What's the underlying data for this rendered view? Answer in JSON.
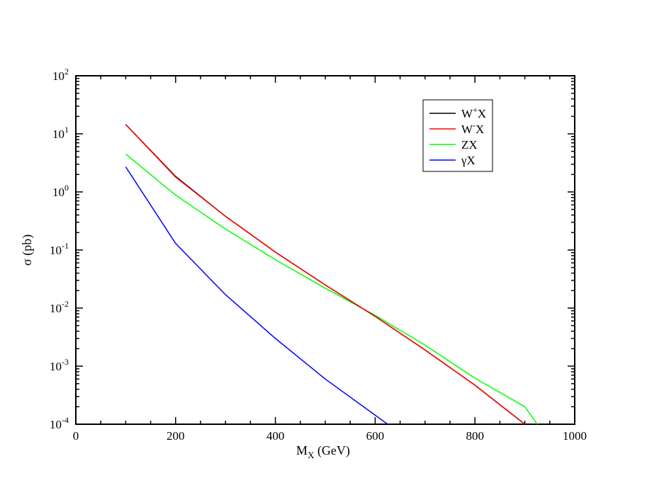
{
  "chart_data": {
    "type": "line",
    "xlabel_main": "M",
    "xlabel_sub": "X",
    "xlabel_rest": " (GeV)",
    "ylabel": "σ (pb)",
    "xlim": [
      0,
      1000
    ],
    "ylim": [
      0.0001,
      100
    ],
    "yscale": "log",
    "grid": false,
    "legend_position": "top-right",
    "x_ticks": [
      "0",
      "200",
      "400",
      "600",
      "800",
      "1000"
    ],
    "y_ticks": [
      {
        "base": "10",
        "exp": "2"
      },
      {
        "base": "10",
        "exp": "1"
      },
      {
        "base": "10",
        "exp": "0"
      },
      {
        "base": "10",
        "exp": "-1"
      },
      {
        "base": "10",
        "exp": "-2"
      },
      {
        "base": "10",
        "exp": "-3"
      },
      {
        "base": "10",
        "exp": "-4"
      }
    ],
    "series": [
      {
        "name_base": "W",
        "name_sup": "+",
        "name_rest": "X",
        "color": "#000000",
        "x": [
          100,
          200,
          300,
          400,
          500,
          600,
          700,
          800,
          900
        ],
        "y": [
          14.5,
          1.85,
          0.38,
          0.092,
          0.025,
          0.0072,
          0.0019,
          0.00047,
          0.0001
        ]
      },
      {
        "name_base": "W",
        "name_sup": "-",
        "name_rest": "X",
        "color": "#ff0000",
        "x": [
          100,
          200,
          300,
          400,
          500,
          600,
          700,
          800,
          900
        ],
        "y": [
          14.5,
          1.8,
          0.38,
          0.092,
          0.025,
          0.0072,
          0.0019,
          0.00047,
          0.0001
        ]
      },
      {
        "name_base": "ZX",
        "name_sup": "",
        "name_rest": "",
        "color": "#00ff00",
        "x": [
          100,
          200,
          300,
          400,
          500,
          600,
          700,
          800,
          900,
          925
        ],
        "y": [
          4.5,
          0.88,
          0.23,
          0.068,
          0.022,
          0.0075,
          0.0023,
          0.00062,
          0.0002,
          0.0001
        ]
      },
      {
        "name_base": "γX",
        "name_sup": "",
        "name_rest": "",
        "color": "#0000ff",
        "x": [
          100,
          200,
          300,
          400,
          500,
          625
        ],
        "y": [
          2.7,
          0.13,
          0.017,
          0.003,
          0.0006,
          0.0001
        ]
      }
    ]
  }
}
